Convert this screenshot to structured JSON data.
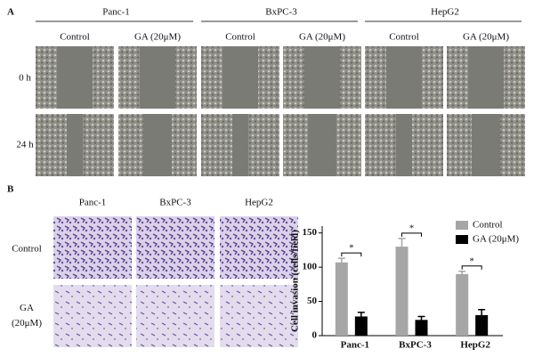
{
  "panel_a": {
    "label": "A",
    "row_labels": [
      "0 h",
      "24 h"
    ],
    "cell_lines": [
      {
        "name": "Panc-1",
        "conditions": [
          "Control",
          "GA (20μM)"
        ]
      },
      {
        "name": "BxPC-3",
        "conditions": [
          "Control",
          "GA (20μM)"
        ]
      },
      {
        "name": "HepG2",
        "conditions": [
          "Control",
          "GA (20μM)"
        ]
      }
    ]
  },
  "panel_b": {
    "label": "B",
    "columns": [
      "Panc-1",
      "BxPC-3",
      "HepG2"
    ],
    "row_labels": [
      [
        "Control"
      ],
      [
        "GA",
        "(20μM)"
      ]
    ]
  },
  "chart_data": {
    "type": "bar",
    "y_label": "Cell invasion (cells/field)",
    "categories": [
      "Panc-1",
      "BxPC-3",
      "HepG2"
    ],
    "series": [
      {
        "name": "Control",
        "color": "#a6a6a6",
        "values": [
          107,
          130,
          90
        ],
        "errors": [
          6,
          12,
          4
        ]
      },
      {
        "name": "GA (20μM)",
        "color": "#000000",
        "values": [
          28,
          23,
          30
        ],
        "errors": [
          6,
          5,
          8
        ]
      }
    ],
    "significance": [
      "*",
      "*",
      "*"
    ],
    "ylim": [
      0,
      160
    ],
    "yticks": [
      0,
      50,
      100,
      150
    ],
    "grid": false,
    "legend": "upper right"
  }
}
